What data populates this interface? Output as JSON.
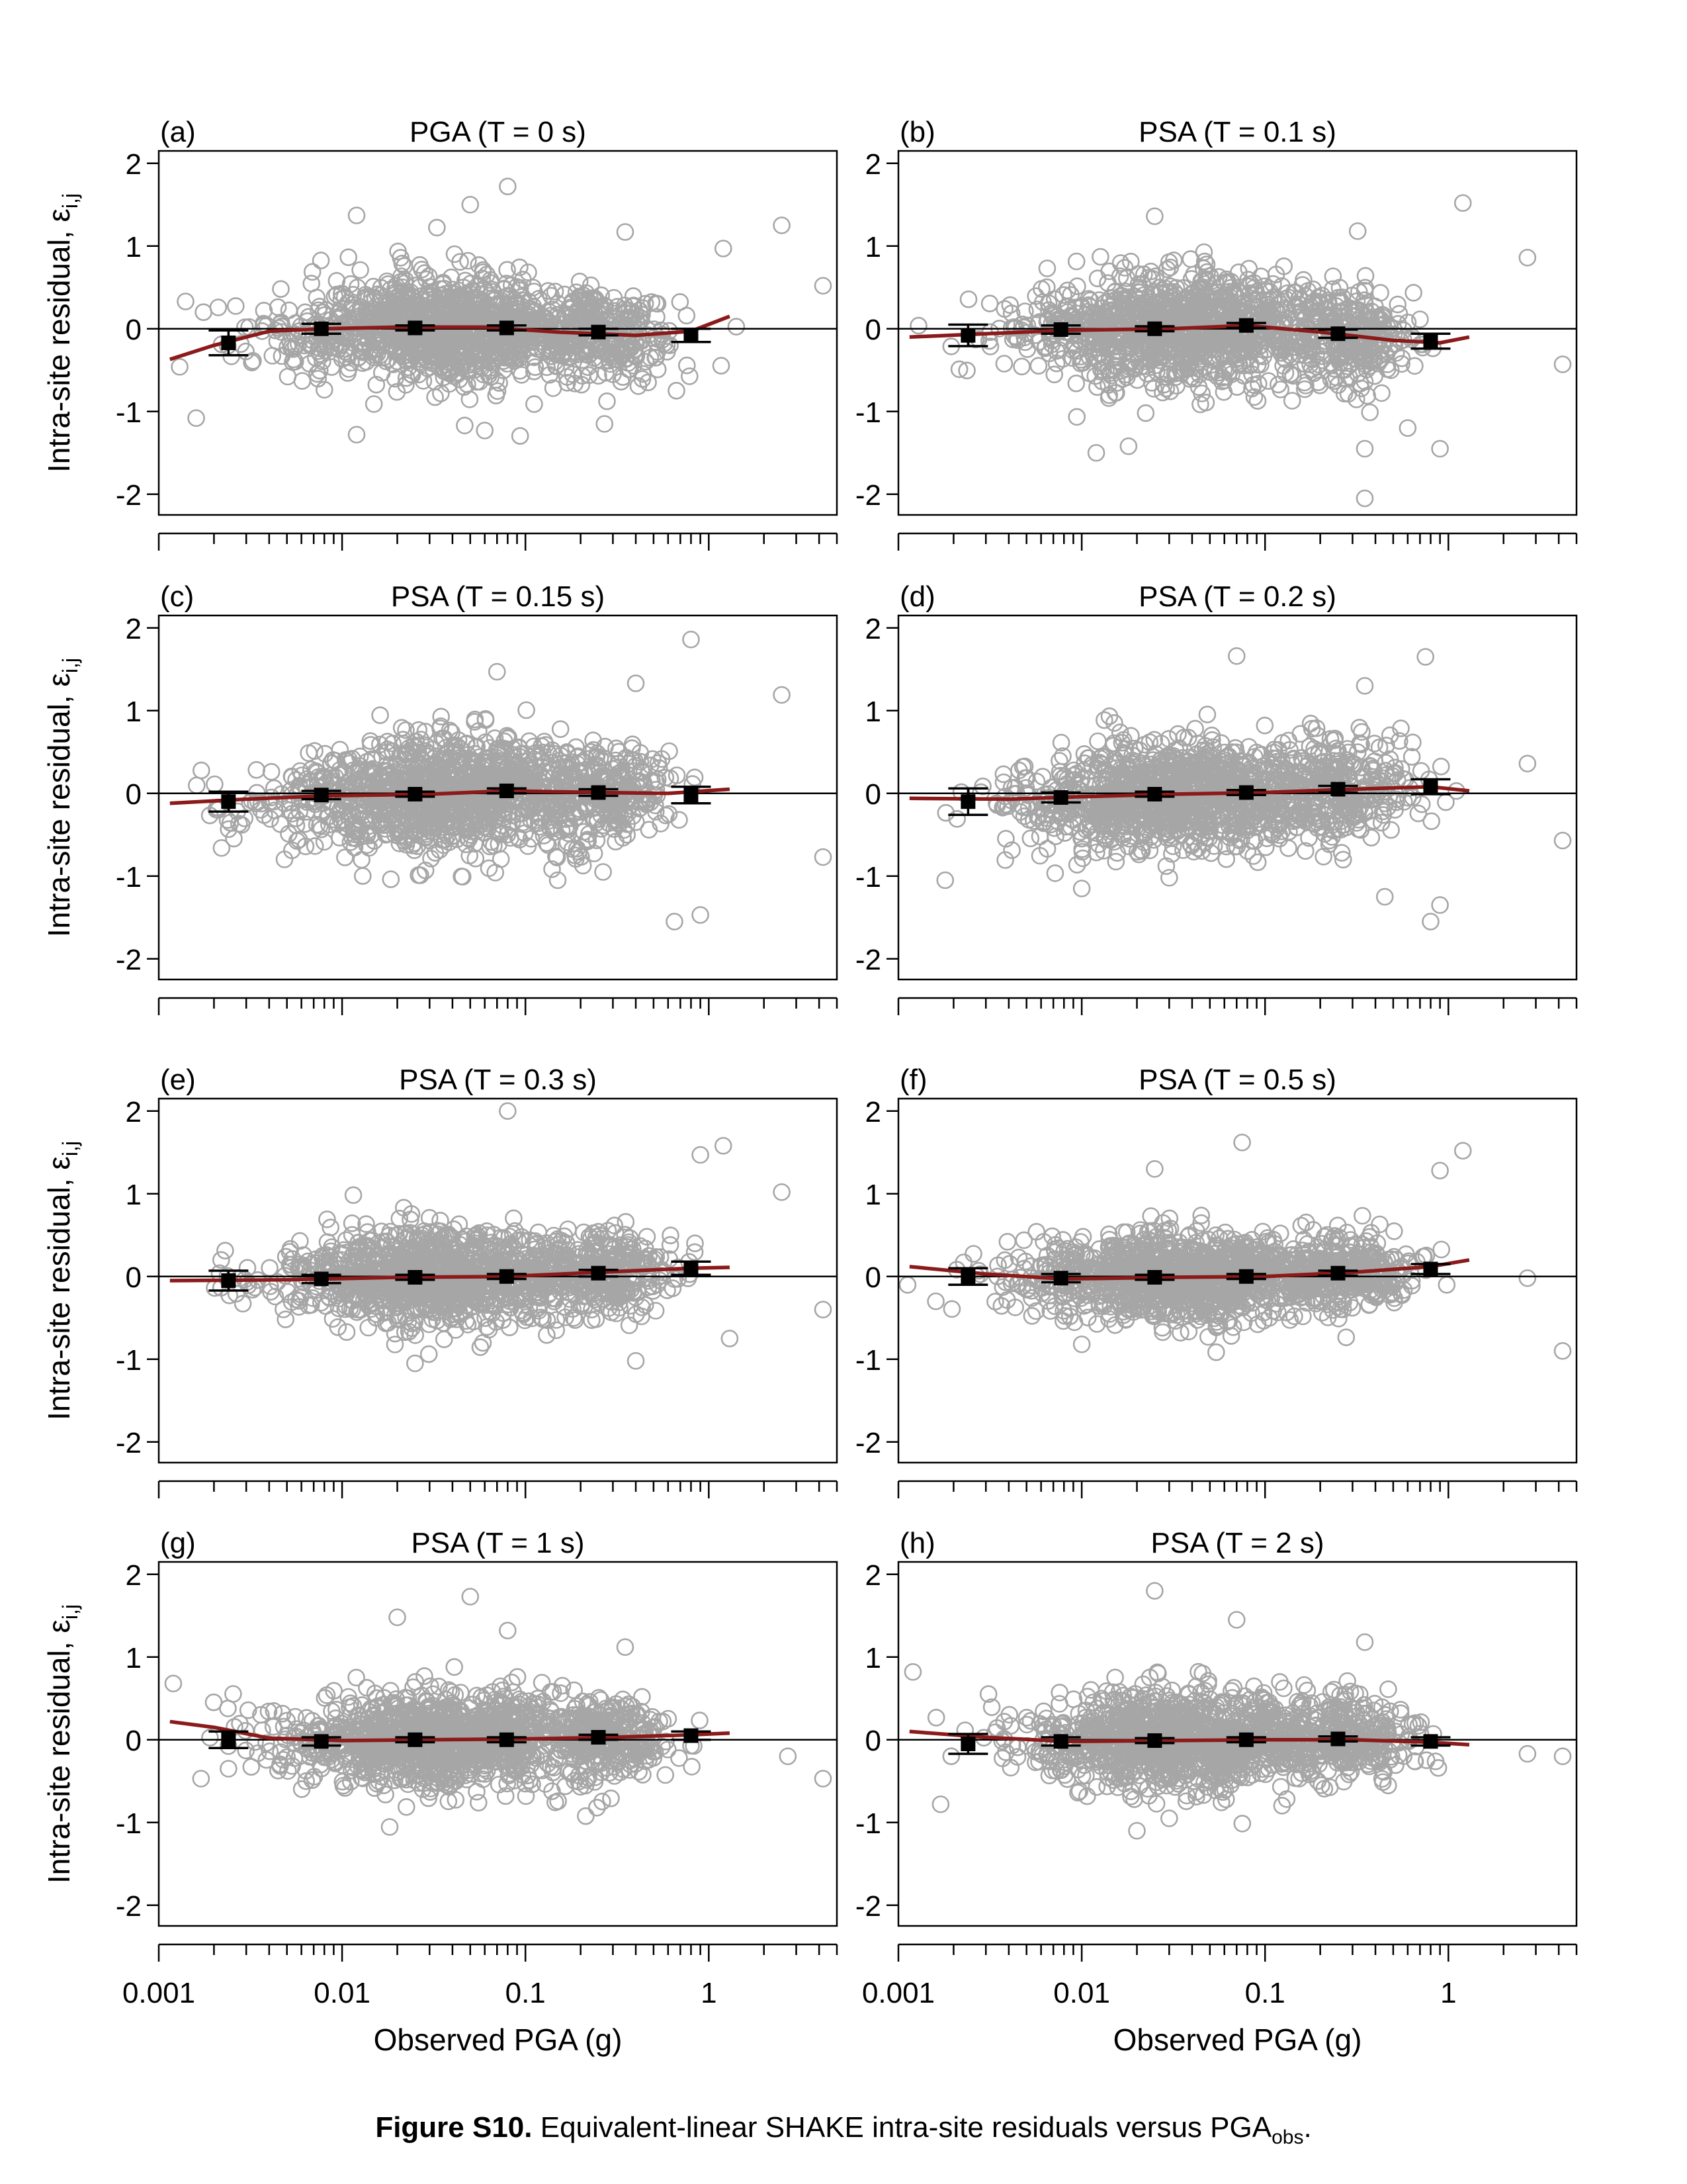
{
  "x_axis": {
    "label": "Observed PGA (g)",
    "tick_labels": [
      "0.001",
      "0.01",
      "0.1",
      "1"
    ],
    "scale": "log",
    "xlim": [
      0.001,
      5
    ]
  },
  "y_axis": {
    "label": "Intra-site residual, ε",
    "label_sub": "i,j",
    "tick_labels": [
      "2",
      "1",
      "0",
      "-1",
      "-2"
    ],
    "ylim": [
      -2.25,
      2.15
    ]
  },
  "caption": {
    "bold": "Figure S10.",
    "text": " Equivalent-linear SHAKE intra-site residuals versus PGA",
    "sub": "obs",
    "end": "."
  },
  "colors": {
    "scatter": "#a6a6a6",
    "trend": "#8b1a1a",
    "binned": "#000000",
    "axis": "#000000"
  },
  "chart_data": [
    {
      "type": "scatter",
      "panel": "(a)",
      "title": "PGA (T = 0 s)",
      "scatter_spread": 0.33,
      "bins": [
        {
          "x": 0.0024,
          "mean": -0.17,
          "err": 0.15
        },
        {
          "x": 0.0077,
          "mean": 0.0,
          "err": 0.06
        },
        {
          "x": 0.025,
          "mean": 0.01,
          "err": 0.03
        },
        {
          "x": 0.079,
          "mean": 0.01,
          "err": 0.03
        },
        {
          "x": 0.25,
          "mean": -0.04,
          "err": 0.04
        },
        {
          "x": 0.8,
          "mean": -0.08,
          "err": 0.08
        }
      ],
      "trend": [
        [
          0.00115,
          -0.37
        ],
        [
          0.002,
          -0.2
        ],
        [
          0.004,
          -0.03
        ],
        [
          0.008,
          0.0
        ],
        [
          0.02,
          0.02
        ],
        [
          0.06,
          0.02
        ],
        [
          0.15,
          -0.04
        ],
        [
          0.4,
          -0.08
        ],
        [
          0.8,
          -0.03
        ],
        [
          1.3,
          0.15
        ]
      ],
      "outliers": [
        [
          0.012,
          1.37
        ],
        [
          0.08,
          1.72
        ],
        [
          0.05,
          1.5
        ],
        [
          0.35,
          1.17
        ],
        [
          2.5,
          1.25
        ],
        [
          4.2,
          0.52
        ],
        [
          1.2,
          0.97
        ],
        [
          0.0016,
          -1.08
        ],
        [
          0.012,
          -1.28
        ],
        [
          0.06,
          -1.23
        ],
        [
          0.27,
          -1.15
        ],
        [
          0.0013,
          -0.46
        ],
        [
          0.0014,
          0.33
        ]
      ]
    },
    {
      "type": "scatter",
      "panel": "(b)",
      "title": "PSA (T = 0.1 s)",
      "scatter_spread": 0.35,
      "bins": [
        {
          "x": 0.0024,
          "mean": -0.08,
          "err": 0.13
        },
        {
          "x": 0.0077,
          "mean": -0.01,
          "err": 0.05
        },
        {
          "x": 0.025,
          "mean": 0.0,
          "err": 0.03
        },
        {
          "x": 0.079,
          "mean": 0.04,
          "err": 0.03
        },
        {
          "x": 0.25,
          "mean": -0.06,
          "err": 0.05
        },
        {
          "x": 0.8,
          "mean": -0.15,
          "err": 0.09
        }
      ],
      "trend": [
        [
          0.00115,
          -0.1
        ],
        [
          0.003,
          -0.06
        ],
        [
          0.008,
          -0.02
        ],
        [
          0.03,
          0.0
        ],
        [
          0.08,
          0.04
        ],
        [
          0.2,
          -0.04
        ],
        [
          0.5,
          -0.14
        ],
        [
          0.9,
          -0.17
        ],
        [
          1.3,
          -0.1
        ]
      ],
      "outliers": [
        [
          0.025,
          1.36
        ],
        [
          0.32,
          1.18
        ],
        [
          1.2,
          1.52
        ],
        [
          2.7,
          0.86
        ],
        [
          4.2,
          -0.43
        ],
        [
          0.012,
          -1.5
        ],
        [
          0.018,
          -1.42
        ],
        [
          0.35,
          -2.05
        ],
        [
          0.9,
          -1.45
        ],
        [
          0.35,
          -1.45
        ],
        [
          0.6,
          -1.2
        ]
      ]
    },
    {
      "type": "scatter",
      "panel": "(c)",
      "title": "PSA (T = 0.15 s)",
      "scatter_spread": 0.36,
      "bins": [
        {
          "x": 0.0024,
          "mean": -0.1,
          "err": 0.12
        },
        {
          "x": 0.0077,
          "mean": -0.02,
          "err": 0.05
        },
        {
          "x": 0.025,
          "mean": -0.01,
          "err": 0.03
        },
        {
          "x": 0.079,
          "mean": 0.03,
          "err": 0.03
        },
        {
          "x": 0.25,
          "mean": 0.01,
          "err": 0.04
        },
        {
          "x": 0.8,
          "mean": -0.02,
          "err": 0.1
        }
      ],
      "trend": [
        [
          0.00115,
          -0.12
        ],
        [
          0.003,
          -0.07
        ],
        [
          0.008,
          -0.03
        ],
        [
          0.03,
          -0.01
        ],
        [
          0.08,
          0.03
        ],
        [
          0.25,
          0.01
        ],
        [
          0.6,
          0.0
        ],
        [
          1.3,
          0.05
        ]
      ],
      "outliers": [
        [
          0.07,
          1.47
        ],
        [
          0.8,
          1.86
        ],
        [
          2.5,
          1.19
        ],
        [
          4.2,
          -0.77
        ],
        [
          0.4,
          1.33
        ],
        [
          0.65,
          -1.55
        ],
        [
          0.9,
          -1.47
        ],
        [
          0.15,
          -1.05
        ],
        [
          0.0022,
          -0.66
        ]
      ]
    },
    {
      "type": "scatter",
      "panel": "(d)",
      "title": "PSA (T = 0.2 s)",
      "scatter_spread": 0.34,
      "bins": [
        {
          "x": 0.0024,
          "mean": -0.1,
          "err": 0.16
        },
        {
          "x": 0.0077,
          "mean": -0.05,
          "err": 0.06
        },
        {
          "x": 0.025,
          "mean": -0.01,
          "err": 0.03
        },
        {
          "x": 0.079,
          "mean": 0.01,
          "err": 0.03
        },
        {
          "x": 0.25,
          "mean": 0.05,
          "err": 0.04
        },
        {
          "x": 0.8,
          "mean": 0.08,
          "err": 0.09
        }
      ],
      "trend": [
        [
          0.00115,
          -0.06
        ],
        [
          0.004,
          -0.07
        ],
        [
          0.01,
          -0.04
        ],
        [
          0.03,
          -0.01
        ],
        [
          0.1,
          0.01
        ],
        [
          0.3,
          0.05
        ],
        [
          0.8,
          0.08
        ],
        [
          1.3,
          0.03
        ]
      ],
      "outliers": [
        [
          0.07,
          1.66
        ],
        [
          0.75,
          1.65
        ],
        [
          0.35,
          1.3
        ],
        [
          2.7,
          0.36
        ],
        [
          4.2,
          -0.57
        ],
        [
          0.8,
          -1.55
        ],
        [
          0.9,
          -1.35
        ],
        [
          0.45,
          -1.25
        ],
        [
          0.0018,
          -1.05
        ],
        [
          0.01,
          -1.15
        ],
        [
          0.03,
          -1.02
        ]
      ]
    },
    {
      "type": "scatter",
      "panel": "(e)",
      "title": "PSA (T = 0.3 s)",
      "scatter_spread": 0.3,
      "bins": [
        {
          "x": 0.0024,
          "mean": -0.05,
          "err": 0.12
        },
        {
          "x": 0.0077,
          "mean": -0.03,
          "err": 0.05
        },
        {
          "x": 0.025,
          "mean": -0.01,
          "err": 0.03
        },
        {
          "x": 0.079,
          "mean": 0.0,
          "err": 0.03
        },
        {
          "x": 0.25,
          "mean": 0.04,
          "err": 0.04
        },
        {
          "x": 0.8,
          "mean": 0.1,
          "err": 0.08
        }
      ],
      "trend": [
        [
          0.00115,
          -0.05
        ],
        [
          0.005,
          -0.04
        ],
        [
          0.02,
          -0.01
        ],
        [
          0.08,
          0.0
        ],
        [
          0.25,
          0.05
        ],
        [
          0.8,
          0.1
        ],
        [
          1.3,
          0.11
        ]
      ],
      "outliers": [
        [
          0.08,
          2.0
        ],
        [
          1.2,
          1.58
        ],
        [
          0.9,
          1.47
        ],
        [
          2.5,
          1.02
        ],
        [
          4.2,
          -0.4
        ],
        [
          0.4,
          -1.02
        ],
        [
          0.025,
          -1.05
        ],
        [
          1.3,
          -0.75
        ]
      ]
    },
    {
      "type": "scatter",
      "panel": "(f)",
      "title": "PSA (T = 0.5 s)",
      "scatter_spread": 0.27,
      "bins": [
        {
          "x": 0.0024,
          "mean": 0.0,
          "err": 0.1
        },
        {
          "x": 0.0077,
          "mean": -0.02,
          "err": 0.05
        },
        {
          "x": 0.025,
          "mean": -0.01,
          "err": 0.03
        },
        {
          "x": 0.079,
          "mean": 0.0,
          "err": 0.03
        },
        {
          "x": 0.25,
          "mean": 0.04,
          "err": 0.03
        },
        {
          "x": 0.8,
          "mean": 0.09,
          "err": 0.06
        }
      ],
      "trend": [
        [
          0.00115,
          0.12
        ],
        [
          0.003,
          0.03
        ],
        [
          0.008,
          -0.03
        ],
        [
          0.03,
          -0.01
        ],
        [
          0.1,
          0.0
        ],
        [
          0.3,
          0.05
        ],
        [
          0.8,
          0.12
        ],
        [
          1.3,
          0.2
        ]
      ],
      "outliers": [
        [
          0.075,
          1.62
        ],
        [
          1.2,
          1.52
        ],
        [
          0.9,
          1.28
        ],
        [
          0.025,
          1.3
        ],
        [
          2.7,
          -0.02
        ],
        [
          4.2,
          -0.9
        ],
        [
          0.0016,
          -0.3
        ],
        [
          0.01,
          -0.82
        ]
      ]
    },
    {
      "type": "scatter",
      "panel": "(g)",
      "title": "PSA (T = 1 s)",
      "scatter_spread": 0.3,
      "bins": [
        {
          "x": 0.0024,
          "mean": 0.0,
          "err": 0.1
        },
        {
          "x": 0.0077,
          "mean": -0.02,
          "err": 0.05
        },
        {
          "x": 0.025,
          "mean": 0.0,
          "err": 0.03
        },
        {
          "x": 0.079,
          "mean": 0.0,
          "err": 0.03
        },
        {
          "x": 0.25,
          "mean": 0.03,
          "err": 0.03
        },
        {
          "x": 0.8,
          "mean": 0.05,
          "err": 0.05
        }
      ],
      "trend": [
        [
          0.00115,
          0.22
        ],
        [
          0.002,
          0.15
        ],
        [
          0.004,
          0.02
        ],
        [
          0.01,
          -0.01
        ],
        [
          0.03,
          0.0
        ],
        [
          0.1,
          0.01
        ],
        [
          0.3,
          0.03
        ],
        [
          0.8,
          0.06
        ],
        [
          1.3,
          0.08
        ]
      ],
      "outliers": [
        [
          0.05,
          1.73
        ],
        [
          0.08,
          1.32
        ],
        [
          0.02,
          1.48
        ],
        [
          0.35,
          1.12
        ],
        [
          0.0012,
          0.68
        ],
        [
          2.7,
          -0.2
        ],
        [
          4.2,
          -0.47
        ],
        [
          0.0017,
          -0.47
        ],
        [
          0.0024,
          -0.35
        ]
      ]
    },
    {
      "type": "scatter",
      "panel": "(h)",
      "title": "PSA (T = 2 s)",
      "scatter_spread": 0.3,
      "bins": [
        {
          "x": 0.0024,
          "mean": -0.05,
          "err": 0.12
        },
        {
          "x": 0.0077,
          "mean": -0.02,
          "err": 0.05
        },
        {
          "x": 0.025,
          "mean": -0.01,
          "err": 0.03
        },
        {
          "x": 0.079,
          "mean": 0.0,
          "err": 0.03
        },
        {
          "x": 0.25,
          "mean": 0.01,
          "err": 0.03
        },
        {
          "x": 0.8,
          "mean": -0.02,
          "err": 0.05
        }
      ],
      "trend": [
        [
          0.00115,
          0.1
        ],
        [
          0.003,
          0.03
        ],
        [
          0.008,
          -0.02
        ],
        [
          0.03,
          -0.01
        ],
        [
          0.1,
          0.0
        ],
        [
          0.3,
          0.0
        ],
        [
          0.8,
          -0.03
        ],
        [
          1.3,
          -0.06
        ]
      ],
      "outliers": [
        [
          0.025,
          1.8
        ],
        [
          0.07,
          1.45
        ],
        [
          0.35,
          1.18
        ],
        [
          0.0012,
          0.82
        ],
        [
          2.7,
          -0.17
        ],
        [
          4.2,
          -0.2
        ],
        [
          0.0017,
          -0.78
        ],
        [
          0.02,
          -1.1
        ],
        [
          0.03,
          -0.95
        ]
      ]
    }
  ]
}
